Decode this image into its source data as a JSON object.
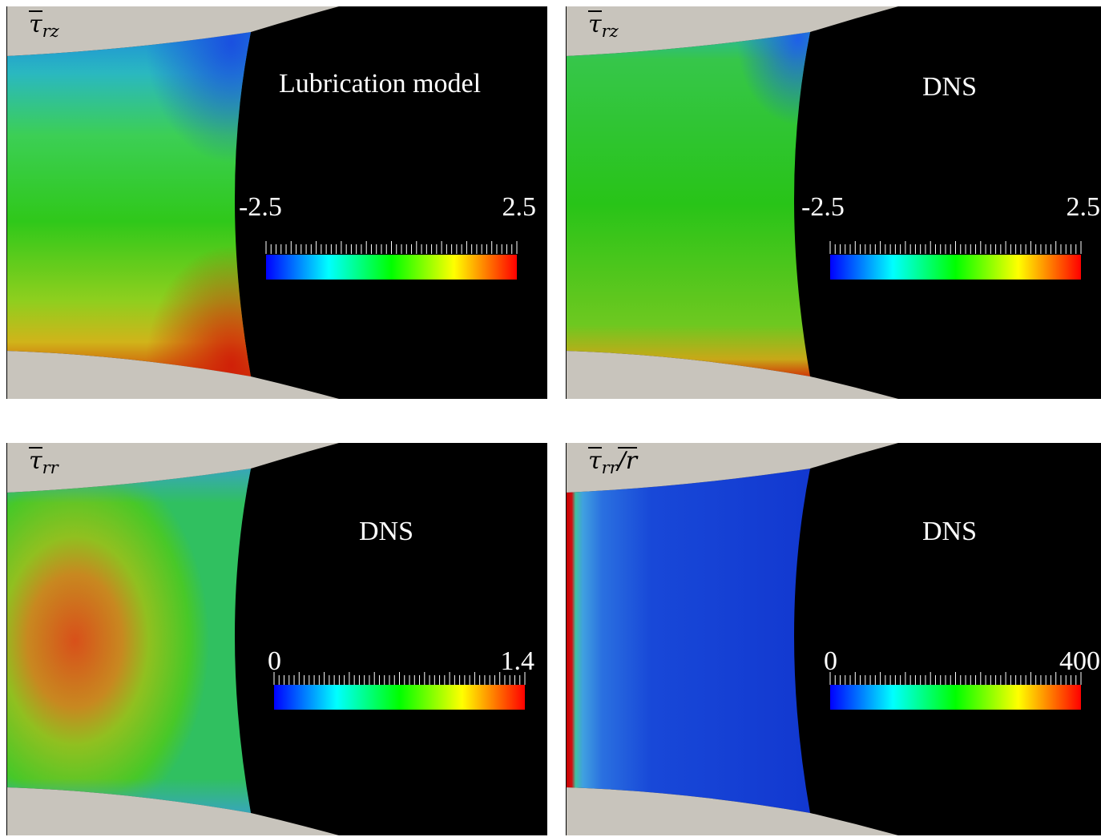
{
  "panels": [
    {
      "field_symbol": "τ",
      "field_subscript": "rz",
      "field_suffix": "",
      "title": "Lubrication model",
      "colorbar": {
        "min": "-2.5",
        "max": "2.5"
      }
    },
    {
      "field_symbol": "τ",
      "field_subscript": "rz",
      "field_suffix": "",
      "title": "DNS",
      "colorbar": {
        "min": "-2.5",
        "max": "2.5"
      }
    },
    {
      "field_symbol": "τ",
      "field_subscript": "rr",
      "field_suffix": "",
      "title": "DNS",
      "colorbar": {
        "min": "0",
        "max": "1.4"
      }
    },
    {
      "field_symbol": "τ",
      "field_subscript": "rr",
      "field_suffix": "/r",
      "title": "DNS",
      "colorbar": {
        "min": "0",
        "max": "400"
      }
    }
  ],
  "colormap": [
    "#0000ff",
    "#00ffff",
    "#00ff00",
    "#ffff00",
    "#ff0000"
  ],
  "wall_color": "#c8c4bc"
}
